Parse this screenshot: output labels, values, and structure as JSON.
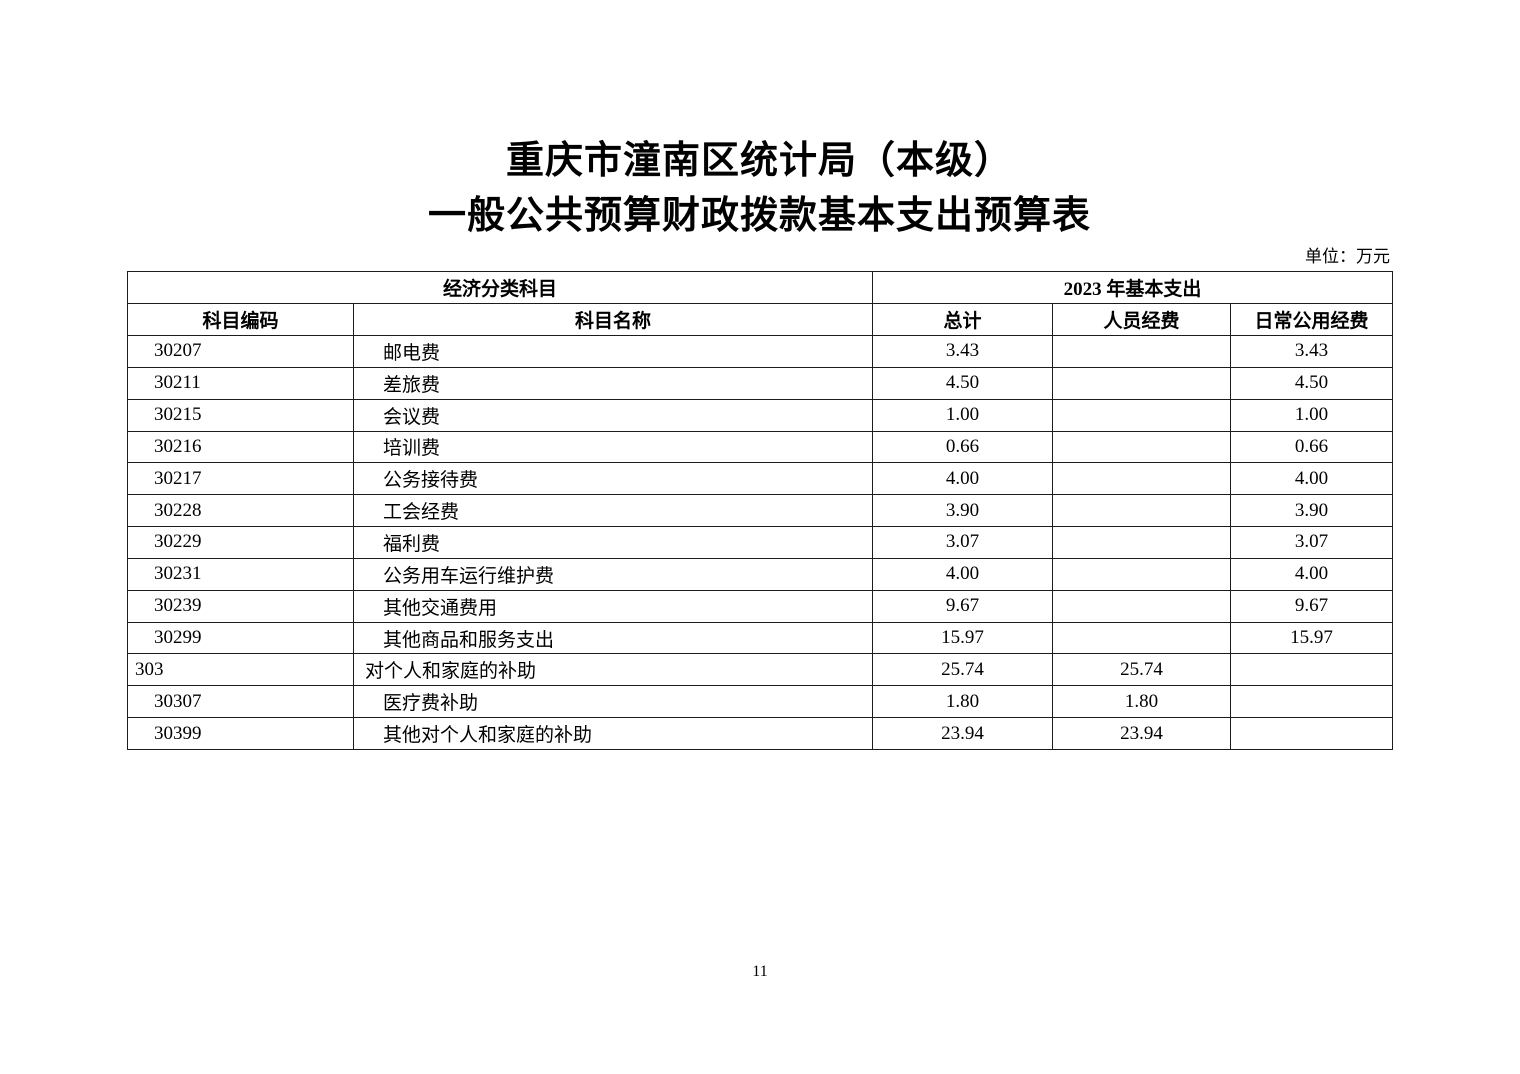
{
  "title": {
    "line1": "重庆市潼南区统计局（本级）",
    "line2": "一般公共预算财政拨款基本支出预算表"
  },
  "unit_label": "单位：万元",
  "page_number": "11",
  "table": {
    "header_groups": {
      "left": "经济分类科目",
      "right": "2023 年基本支出"
    },
    "columns": [
      "科目编码",
      "科目名称",
      "总计",
      "人员经费",
      "日常公用经费"
    ],
    "rows": [
      {
        "code": "30207",
        "name": "邮电费",
        "total": "3.43",
        "personnel": "",
        "daily": "3.43",
        "indent": 1
      },
      {
        "code": "30211",
        "name": "差旅费",
        "total": "4.50",
        "personnel": "",
        "daily": "4.50",
        "indent": 1
      },
      {
        "code": "30215",
        "name": "会议费",
        "total": "1.00",
        "personnel": "",
        "daily": "1.00",
        "indent": 1
      },
      {
        "code": "30216",
        "name": "培训费",
        "total": "0.66",
        "personnel": "",
        "daily": "0.66",
        "indent": 1
      },
      {
        "code": "30217",
        "name": "公务接待费",
        "total": "4.00",
        "personnel": "",
        "daily": "4.00",
        "indent": 1
      },
      {
        "code": "30228",
        "name": "工会经费",
        "total": "3.90",
        "personnel": "",
        "daily": "3.90",
        "indent": 1
      },
      {
        "code": "30229",
        "name": "福利费",
        "total": "3.07",
        "personnel": "",
        "daily": "3.07",
        "indent": 1
      },
      {
        "code": "30231",
        "name": "公务用车运行维护费",
        "total": "4.00",
        "personnel": "",
        "daily": "4.00",
        "indent": 1
      },
      {
        "code": "30239",
        "name": "其他交通费用",
        "total": "9.67",
        "personnel": "",
        "daily": "9.67",
        "indent": 1
      },
      {
        "code": "30299",
        "name": "其他商品和服务支出",
        "total": "15.97",
        "personnel": "",
        "daily": "15.97",
        "indent": 1
      },
      {
        "code": "303",
        "name": "对个人和家庭的补助",
        "total": "25.74",
        "personnel": "25.74",
        "daily": "",
        "indent": 0
      },
      {
        "code": "30307",
        "name": "医疗费补助",
        "total": "1.80",
        "personnel": "1.80",
        "daily": "",
        "indent": 1
      },
      {
        "code": "30399",
        "name": "其他对个人和家庭的补助",
        "total": "23.94",
        "personnel": "23.94",
        "daily": "",
        "indent": 1
      }
    ]
  }
}
